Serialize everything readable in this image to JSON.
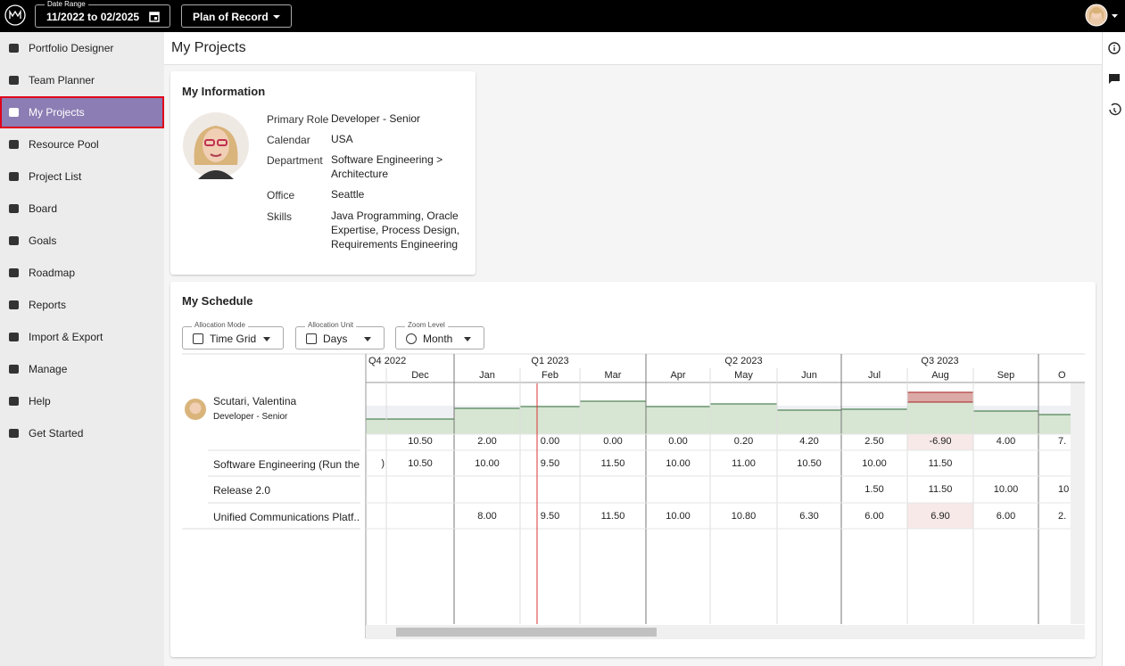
{
  "top_bar": {
    "date_range_label": "Date Range",
    "date_range": "11/2022 to 02/2025",
    "plan": "Plan of Record"
  },
  "sidebar": {
    "items": [
      "Portfolio Designer",
      "Team Planner",
      "My Projects",
      "Resource Pool",
      "Project List",
      "Board",
      "Goals",
      "Roadmap",
      "Reports",
      "Import & Export",
      "Manage",
      "Help",
      "Get Started"
    ]
  },
  "page_title": "My Projects",
  "info": {
    "title": "My Information",
    "fields": [
      {
        "label": "Primary Role",
        "value": "Developer - Senior"
      },
      {
        "label": "Calendar",
        "value": "USA"
      },
      {
        "label": "Department",
        "value": "Software Engineering > Architecture"
      },
      {
        "label": "Office",
        "value": "Seattle"
      },
      {
        "label": "Skills",
        "value": "Java Programming, Oracle Expertise, Process Design, Requirements Engineering"
      }
    ]
  },
  "schedule": {
    "title": "My Schedule",
    "controls": [
      {
        "label": "Allocation Mode",
        "value": "Time Grid"
      },
      {
        "label": "Allocation Unit",
        "value": "Days"
      },
      {
        "label": "Zoom Level",
        "value": "Month"
      }
    ],
    "quarters": [
      "Q4 2022",
      "Q1 2023",
      "Q2 2023",
      "Q3 2023"
    ],
    "months": [
      null,
      "Dec",
      "Jan",
      "Feb",
      "Mar",
      "Apr",
      "May",
      "Jun",
      "Jul",
      "Aug",
      "Sep",
      "O"
    ],
    "person": {
      "name": "Scutari, Valentina",
      "role": "Developer - Senior"
    },
    "totals": [
      null,
      "10.50",
      "2.00",
      "0.00",
      "0.00",
      "0.00",
      "0.20",
      "4.20",
      "2.50",
      "-6.90",
      "4.00",
      "7."
    ],
    "projects": [
      {
        "name": "Software Engineering (Run the ...",
        "cells": [
          ")",
          "10.50",
          "10.00",
          "9.50",
          "11.50",
          "10.00",
          "11.00",
          "10.50",
          "10.00",
          "11.50",
          null,
          null
        ]
      },
      {
        "name": "Release 2.0",
        "cells": [
          null,
          null,
          null,
          null,
          null,
          null,
          null,
          null,
          "1.50",
          "11.50",
          "10.00",
          "10"
        ]
      },
      {
        "name": "Unified Communications Platf...",
        "cells": [
          null,
          null,
          "8.00",
          "9.50",
          "11.50",
          "10.00",
          "10.80",
          "6.30",
          "6.00",
          "6.90",
          "6.00",
          "2."
        ]
      }
    ]
  }
}
